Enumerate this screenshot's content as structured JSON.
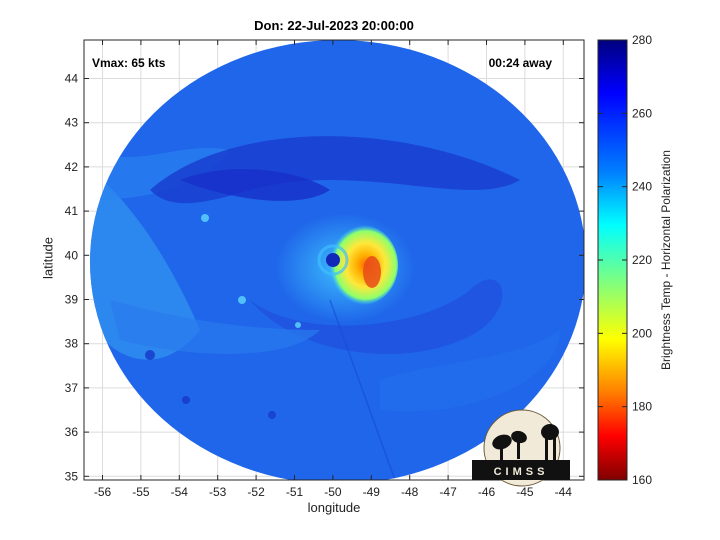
{
  "title": "Don: 22-Jul-2023 20:00:00",
  "annotations": {
    "vmax": "Vmax: 65 kts",
    "timing": "00:24 away"
  },
  "axes": {
    "xlabel": "longitude",
    "ylabel": "latitude",
    "xticks": [
      "-56",
      "-55",
      "-54",
      "-53",
      "-52",
      "-51",
      "-50",
      "-49",
      "-48",
      "-47",
      "-46",
      "-45",
      "-44"
    ],
    "yticks": [
      "44",
      "43",
      "42",
      "41",
      "40",
      "39",
      "38",
      "37",
      "36",
      "35"
    ]
  },
  "colorbar": {
    "label": "Brightness Temp - Horizontal Polarization",
    "ticks": [
      "280",
      "260",
      "240",
      "220",
      "200",
      "180",
      "160"
    ],
    "colormap": [
      "#00007f",
      "#0000ff",
      "#007fff",
      "#00ffff",
      "#7fff7f",
      "#ffff00",
      "#ff7f00",
      "#ff0000",
      "#7f0000"
    ]
  },
  "logo": {
    "text": "CIMSS"
  },
  "map_colors": {
    "background": "#1e64e8",
    "cold_band": "#1c3fd0",
    "warm_core": "#ffe23a",
    "hot_spot": "#e8501e"
  }
}
